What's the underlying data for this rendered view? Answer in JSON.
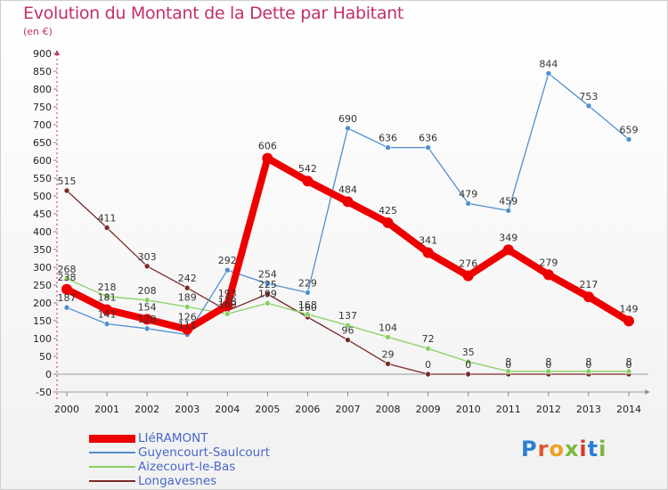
{
  "header": {
    "title": "Evolution du Montant de la Dette par Habitant",
    "unit": "(en €)"
  },
  "logo": {
    "text": "Proxiti",
    "colors": [
      "#2a7fd4",
      "#e0562a",
      "#f0a020",
      "#7ab83a",
      "#d93a2a",
      "#2a7fd4",
      "#7ab83a"
    ]
  },
  "chart_data": {
    "type": "line",
    "title": "Evolution du Montant de la Dette par Habitant",
    "ylabel": "(en €)",
    "xlabel": "",
    "x": [
      "2000",
      "2001",
      "2002",
      "2003",
      "2004",
      "2005",
      "2006",
      "2007",
      "2008",
      "2009",
      "2010",
      "2011",
      "2012",
      "2013",
      "2014"
    ],
    "ylim": [
      -50,
      900
    ],
    "yticks": [
      -50,
      0,
      50,
      100,
      150,
      200,
      250,
      300,
      350,
      400,
      450,
      500,
      550,
      600,
      650,
      700,
      750,
      800,
      850,
      900
    ],
    "grid": false,
    "legend_position": "bottom-left",
    "series": [
      {
        "name": "LIéRAMONT",
        "color": "#ee0000",
        "values": [
          238,
          181,
          154,
          126,
          193,
          606,
          542,
          484,
          425,
          341,
          276,
          349,
          279,
          217,
          149
        ],
        "labels": [
          "238",
          "181",
          "154",
          "126",
          "193",
          "606",
          "542",
          "484",
          "425",
          "341",
          "276",
          "349",
          "279",
          "217",
          "149"
        ]
      },
      {
        "name": "Guyencourt-Saulcourt",
        "color": "#4f8fd0",
        "values": [
          187,
          141,
          128,
          111,
          292,
          254,
          229,
          690,
          636,
          636,
          479,
          459,
          844,
          753,
          659
        ],
        "labels": [
          "187",
          "141",
          "128",
          "111",
          "292",
          "254",
          "229",
          "690",
          "636",
          "636",
          "479",
          "459",
          "844",
          "753",
          "659"
        ]
      },
      {
        "name": "Aizecourt-le-Bas",
        "color": "#88d060",
        "values": [
          268,
          218,
          208,
          189,
          169,
          199,
          168,
          137,
          104,
          72,
          35,
          8,
          8,
          8,
          8
        ],
        "labels": [
          "268",
          "218",
          "208",
          "189",
          "169",
          "199",
          "168",
          "137",
          "104",
          "72",
          "35",
          "8",
          "8",
          "8",
          "8"
        ]
      },
      {
        "name": "Longavesnes",
        "color": "#7a2a28",
        "values": [
          515,
          411,
          303,
          242,
          178,
          225,
          160,
          96,
          29,
          0,
          0,
          0,
          0,
          0,
          0
        ],
        "labels": [
          "515",
          "411",
          "303",
          "242",
          "178",
          "225",
          "160",
          "96",
          "29",
          "0",
          "0",
          "0",
          "0",
          "0",
          "0"
        ]
      }
    ]
  }
}
